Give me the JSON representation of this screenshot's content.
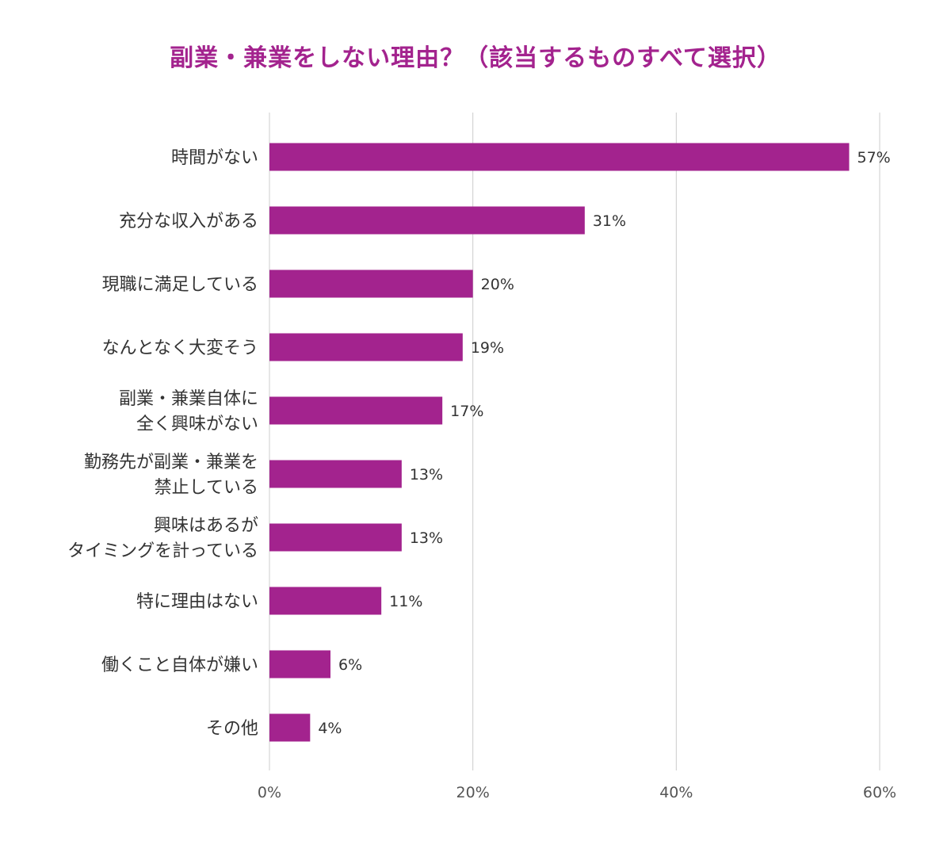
{
  "chart_data": {
    "type": "bar",
    "orientation": "horizontal",
    "title": "副業・兼業をしない理由？（該当するものすべて選択）",
    "xlabel": "",
    "ylabel": "",
    "xlim": [
      0,
      60
    ],
    "x_ticks": [
      0,
      20,
      40,
      60
    ],
    "tick_format": "{v}%",
    "value_format": "{v}%",
    "grid": true,
    "color": "#a3238e",
    "categories": [
      [
        "時間がない"
      ],
      [
        "充分な収入がある"
      ],
      [
        "現職に満足している"
      ],
      [
        "なんとなく大変そう"
      ],
      [
        "副業・兼業自体に",
        "全く興味がない"
      ],
      [
        "勤務先が副業・兼業を",
        "禁止している"
      ],
      [
        "興味はあるが",
        "タイミングを計っている"
      ],
      [
        "特に理由はない"
      ],
      [
        "働くこと自体が嫌い"
      ],
      [
        "その他"
      ]
    ],
    "values": [
      57,
      31,
      20,
      19,
      17,
      13,
      13,
      11,
      6,
      4
    ]
  }
}
